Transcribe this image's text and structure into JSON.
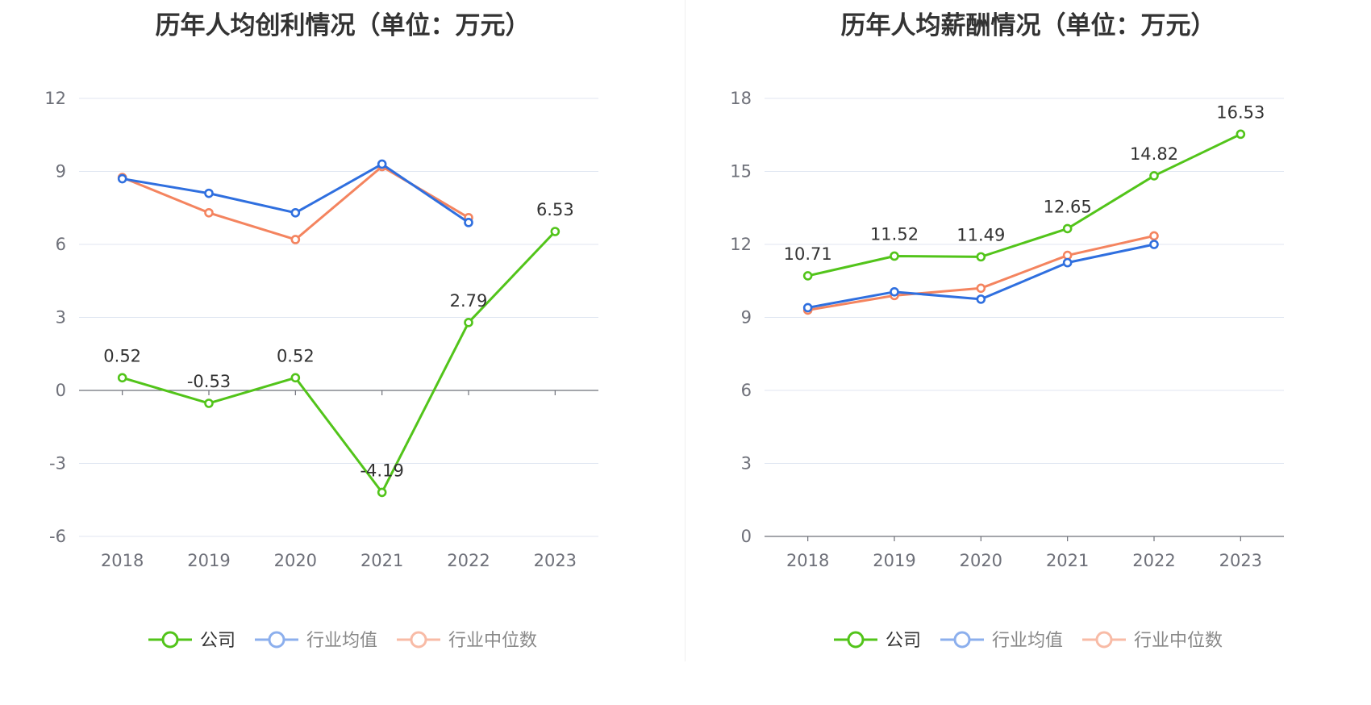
{
  "charts": [
    {
      "title": "历年人均创利情况（单位：万元）",
      "chart_data": {
        "type": "line",
        "title": "历年人均创利情况（单位：万元）",
        "categories": [
          "2018",
          "2019",
          "2020",
          "2021",
          "2022",
          "2023"
        ],
        "ylim": [
          -6,
          12
        ],
        "yticks": [
          12,
          9,
          6,
          3,
          0,
          -3,
          -6
        ],
        "grid": true,
        "legend_position": "bottom",
        "series": [
          {
            "name": "公司",
            "color": "#52c41a",
            "labeled": true,
            "values": [
              0.52,
              -0.53,
              0.52,
              -4.19,
              2.79,
              6.53
            ]
          },
          {
            "name": "行业均值",
            "color": "#2f6fdf",
            "labeled": false,
            "values": [
              8.7,
              8.1,
              7.3,
              9.3,
              6.9,
              null
            ]
          },
          {
            "name": "行业中位数",
            "color": "#f4845f",
            "labeled": false,
            "values": [
              8.75,
              7.3,
              6.2,
              9.2,
              7.1,
              null
            ]
          }
        ]
      }
    },
    {
      "title": "历年人均薪酬情况（单位：万元）",
      "chart_data": {
        "type": "line",
        "title": "历年人均薪酬情况（单位：万元）",
        "categories": [
          "2018",
          "2019",
          "2020",
          "2021",
          "2022",
          "2023"
        ],
        "ylim": [
          0,
          18
        ],
        "yticks": [
          18,
          15,
          12,
          9,
          6,
          3,
          0
        ],
        "grid": true,
        "legend_position": "bottom",
        "series": [
          {
            "name": "公司",
            "color": "#52c41a",
            "labeled": true,
            "values": [
              10.71,
              11.52,
              11.49,
              12.65,
              14.82,
              16.53
            ]
          },
          {
            "name": "行业均值",
            "color": "#2f6fdf",
            "labeled": false,
            "values": [
              9.4,
              10.05,
              9.75,
              11.25,
              12.0,
              null
            ]
          },
          {
            "name": "行业中位数",
            "color": "#f4845f",
            "labeled": false,
            "values": [
              9.3,
              9.9,
              10.2,
              11.55,
              12.35,
              null
            ]
          }
        ]
      }
    }
  ]
}
